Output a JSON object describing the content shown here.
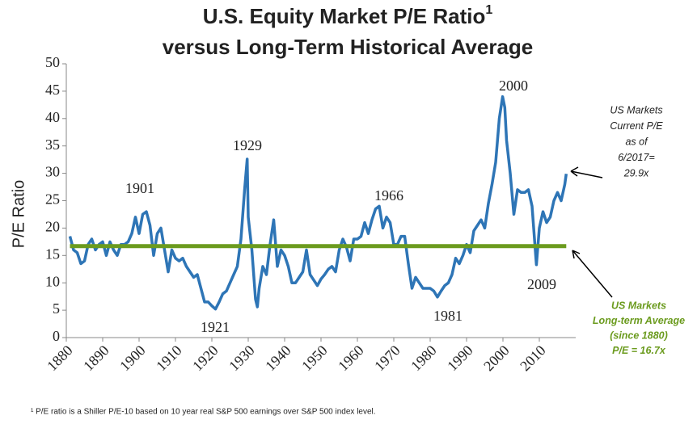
{
  "chart_data": {
    "type": "line",
    "title": "U.S. Equity Market P/E Ratio",
    "title_superscript": "1",
    "subtitle": "versus Long-Term Historical Average",
    "ylabel": "P/E Ratio",
    "footnote": "¹ P/E ratio is a Shiller P/E-10 based on 10 year real S&P 500 earnings over S&P 500 index level.",
    "xlim": [
      1880,
      2020
    ],
    "xticks": [
      1880,
      1890,
      1900,
      1910,
      1920,
      1930,
      1940,
      1950,
      1960,
      1970,
      1980,
      1990,
      2000,
      2010
    ],
    "ylim": [
      0,
      50
    ],
    "yticks": [
      0,
      5,
      10,
      15,
      20,
      25,
      30,
      35,
      40,
      45,
      50
    ],
    "x": [
      1881,
      1882,
      1883,
      1884,
      1885,
      1886,
      1887,
      1888,
      1889,
      1890,
      1891,
      1892,
      1893,
      1894,
      1895,
      1896,
      1897,
      1898,
      1899,
      1900,
      1901,
      1902,
      1903,
      1904,
      1905,
      1906,
      1907,
      1908,
      1909,
      1910,
      1911,
      1912,
      1913,
      1914,
      1915,
      1916,
      1917,
      1918,
      1919,
      1920,
      1921,
      1922,
      1923,
      1924,
      1925,
      1926,
      1927,
      1928,
      1929,
      1929.7,
      1930,
      1931,
      1932,
      1932.5,
      1933,
      1934,
      1935,
      1936,
      1937,
      1938,
      1939,
      1940,
      1941,
      1942,
      1943,
      1944,
      1945,
      1946,
      1947,
      1948,
      1949,
      1950,
      1951,
      1952,
      1953,
      1954,
      1955,
      1956,
      1957,
      1958,
      1959,
      1960,
      1961,
      1962,
      1963,
      1964,
      1965,
      1966,
      1967,
      1968,
      1969,
      1970,
      1971,
      1972,
      1973,
      1974,
      1975,
      1976,
      1977,
      1978,
      1979,
      1980,
      1981,
      1982,
      1983,
      1984,
      1985,
      1986,
      1987,
      1988,
      1989,
      1990,
      1991,
      1992,
      1993,
      1994,
      1995,
      1996,
      1997,
      1998,
      1999,
      1999.9,
      2000.5,
      2001,
      2002,
      2003,
      2004,
      2005,
      2006,
      2007,
      2008,
      2009,
      2009.2,
      2010,
      2011,
      2012,
      2013,
      2014,
      2015,
      2016,
      2017,
      2017.4
    ],
    "series": [
      {
        "color": "#2e75b6",
        "values": [
          18.5,
          16,
          15.5,
          13.5,
          14,
          17,
          18,
          16,
          17,
          17.5,
          15,
          17.5,
          16,
          15,
          17,
          17,
          17.5,
          19,
          22,
          19,
          22.5,
          23,
          20.5,
          15,
          19,
          20,
          16,
          12,
          16,
          14.5,
          14,
          14.5,
          13,
          12,
          11,
          11.5,
          9,
          6.5,
          6.5,
          5.8,
          5.2,
          6.5,
          8,
          8.5,
          10,
          11.5,
          13,
          18,
          27,
          32.6,
          22,
          16,
          7,
          5.6,
          9,
          13,
          11.5,
          17,
          21.5,
          13,
          16,
          15,
          13,
          10,
          10,
          11,
          12,
          16,
          11.5,
          10.5,
          9.5,
          10.7,
          11.5,
          12.5,
          13,
          12,
          16,
          18,
          16.5,
          14,
          18,
          18,
          18.5,
          21,
          19,
          21.5,
          23.5,
          24,
          20,
          22,
          21,
          17,
          17,
          18.5,
          18.5,
          13.5,
          9,
          11,
          10,
          9,
          9,
          9,
          8.5,
          7.4,
          8.5,
          9.5,
          10,
          11.5,
          14.5,
          13.5,
          15,
          17,
          15.5,
          19.5,
          20.5,
          21.5,
          20,
          24.5,
          28,
          32,
          40,
          44,
          42,
          36,
          30,
          22.5,
          27,
          26.5,
          26.5,
          27,
          24,
          15,
          13.3,
          20,
          23,
          21,
          22,
          25,
          26.5,
          25,
          28,
          29.9
        ]
      }
    ],
    "average_line": {
      "value": 16.7,
      "color": "#6b9b1e"
    },
    "annotations": [
      "1901",
      "1929",
      "1921",
      "1966",
      "1981",
      "2000",
      "2009"
    ],
    "current_note": [
      "US Markets",
      "Current P/E",
      "as of",
      "6/2017=",
      "29.9x"
    ],
    "average_note": [
      "US Markets",
      "Long-term Average",
      "(since 1880)",
      "P/E = 16.7x"
    ]
  }
}
